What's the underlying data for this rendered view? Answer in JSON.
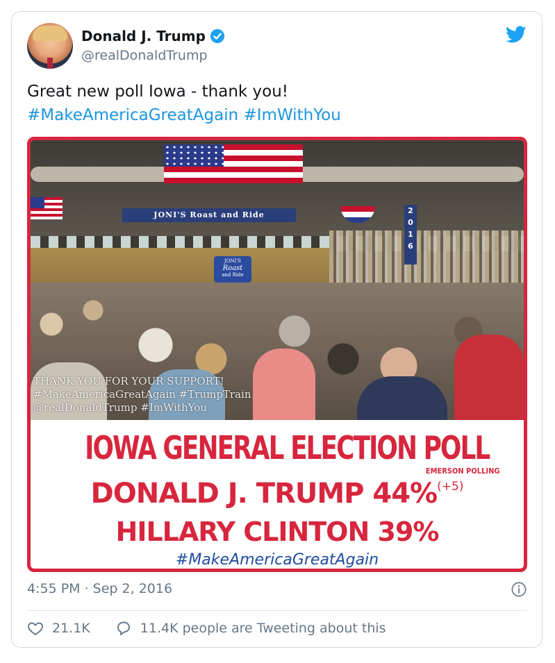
{
  "author": {
    "name": "Donald J. Trump",
    "handle": "@realDonaldTrump"
  },
  "tweet": {
    "text_line1": "Great new poll Iowa - thank you!",
    "hashtag1": "#MakeAmericaGreatAgain",
    "hashtag2": "#ImWithYou"
  },
  "media": {
    "banner_text": "JONI'S Roast and Ride",
    "vertical_banner": "2016",
    "sign_text_1": "JONI'S",
    "sign_text_2": "Roast",
    "sign_text_3": "and Ride",
    "overlay_line1": "THANK YOU FOR YOUR SUPPORT!",
    "overlay_line2": "#MakeAmericaGreatAgain #TrumpTrain",
    "overlay_line3": "@realDonaldTrump #ImWithYou",
    "poll_title": "IOWA GENERAL ELECTION POLL",
    "poll_source": "EMERSON POLLING",
    "candidate1": "DONALD J. TRUMP 44%",
    "candidate1_delta": "(+5)",
    "candidate2": "HILLARY CLINTON 39%",
    "poll_hashtag": "#MakeAmericaGreatAgain"
  },
  "meta": {
    "timestamp": "4:55 PM · Sep 2, 2016"
  },
  "stats": {
    "likes": "21.1K",
    "tweeting": "11.4K people are Tweeting about this"
  },
  "colors": {
    "accent_blue": "#1b95e0",
    "poll_red": "#d7263d",
    "verified_blue": "#1da1f2"
  }
}
